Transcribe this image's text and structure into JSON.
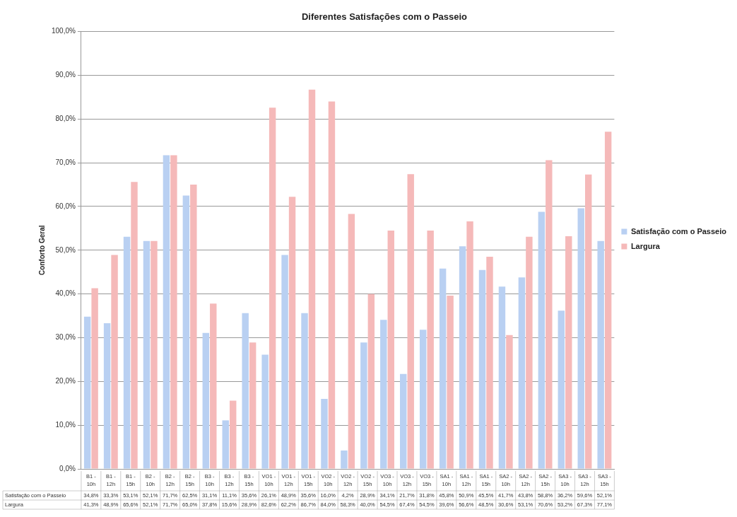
{
  "chart_data": {
    "type": "bar",
    "title": "Diferentes Satisfações com o Passeio",
    "ylabel": "Conforto Geral",
    "categories": [
      "B1 - 10h",
      "B1 - 12h",
      "B1 - 15h",
      "B2 - 10h",
      "B2 - 12h",
      "B2 - 15h",
      "B3 - 10h",
      "B3 - 12h",
      "B3 - 15h",
      "VO1 - 10h",
      "VO1 - 12h",
      "VO1 - 15h",
      "VO2 - 10h",
      "VO2 - 12h",
      "VO2 - 15h",
      "VO3 - 10h",
      "VO3 - 12h",
      "VO3 - 15h",
      "SA1 - 10h",
      "SA1 - 12h",
      "SA1 - 15h",
      "SA2 - 10h",
      "SA2 - 12h",
      "SA2 - 15h",
      "SA3 - 10h",
      "SA3 - 12h",
      "SA3 - 15h"
    ],
    "series": [
      {
        "name": "Satisfação com o Passeio",
        "color": "#b9d0f2",
        "values": [
          34.8,
          33.3,
          53.1,
          52.1,
          71.7,
          62.5,
          31.1,
          11.1,
          35.6,
          26.1,
          48.9,
          35.6,
          16.0,
          4.2,
          28.9,
          34.1,
          21.7,
          31.8,
          45.8,
          50.9,
          45.5,
          41.7,
          43.8,
          58.8,
          36.2,
          59.6,
          52.1
        ],
        "value_labels": [
          "34,8%",
          "33,3%",
          "53,1%",
          "52,1%",
          "71,7%",
          "62,5%",
          "31,1%",
          "11,1%",
          "35,6%",
          "26,1%",
          "48,9%",
          "35,6%",
          "16,0%",
          "4,2%",
          "28,9%",
          "34,1%",
          "21,7%",
          "31,8%",
          "45,8%",
          "50,9%",
          "45,5%",
          "41,7%",
          "43,8%",
          "58,8%",
          "36,2%",
          "59,6%",
          "52,1%"
        ]
      },
      {
        "name": "Largura",
        "color": "#f5b9b9",
        "values": [
          41.3,
          48.9,
          65.6,
          52.1,
          71.7,
          65.0,
          37.8,
          15.6,
          28.9,
          82.6,
          62.2,
          86.7,
          84.0,
          58.3,
          40.0,
          54.5,
          67.4,
          54.5,
          39.6,
          56.6,
          48.5,
          30.6,
          53.1,
          70.6,
          53.2,
          67.3,
          77.1
        ],
        "value_labels": [
          "41,3%",
          "48,9%",
          "65,6%",
          "52,1%",
          "71,7%",
          "65,0%",
          "37,8%",
          "15,6%",
          "28,9%",
          "82,6%",
          "62,2%",
          "86,7%",
          "84,0%",
          "58,3%",
          "40,0%",
          "54,5%",
          "67,4%",
          "54,5%",
          "39,6%",
          "56,6%",
          "48,5%",
          "30,6%",
          "53,1%",
          "70,6%",
          "53,2%",
          "67,3%",
          "77,1%"
        ]
      }
    ],
    "ylim": [
      0,
      100
    ],
    "yticks": [
      {
        "value": 0,
        "label": "0,0%"
      },
      {
        "value": 10,
        "label": "10,0%"
      },
      {
        "value": 20,
        "label": "20,0%"
      },
      {
        "value": 30,
        "label": "30,0%"
      },
      {
        "value": 40,
        "label": "40,0%"
      },
      {
        "value": 50,
        "label": "50,0%"
      },
      {
        "value": 60,
        "label": "60,0%"
      },
      {
        "value": 70,
        "label": "70,0%"
      },
      {
        "value": 80,
        "label": "80,0%"
      },
      {
        "value": 90,
        "label": "90,0%"
      },
      {
        "value": 100,
        "label": "100,0%"
      }
    ],
    "grid": "y",
    "legend": "right"
  }
}
